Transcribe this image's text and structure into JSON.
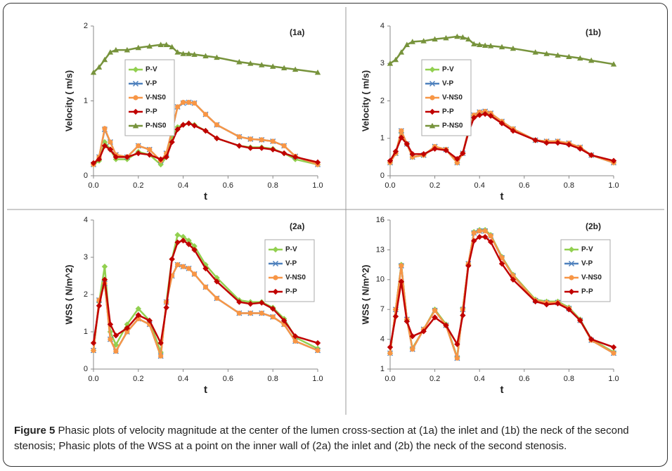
{
  "caption": {
    "label": "Figure 5",
    "text": "Phasic plots of velocity magnitude at the center of the lumen cross-section at (1a) the inlet and (1b) the neck of the second stenosis; Phasic plots of the WSS at a point on the inner wall of (2a) the inlet and (2b) the neck of the second stenosis."
  },
  "chart_data": [
    {
      "type": "line",
      "annotation": "(1a)",
      "y_label": "Velocity ( m/s)",
      "x_label": "t",
      "legend": "upper left",
      "xlim": [
        0,
        1
      ],
      "xticks": [
        {
          "value": 0,
          "label": "0.0"
        },
        0.2,
        0.4,
        0.6,
        0.8,
        {
          "value": 1,
          "label": "1.0"
        }
      ],
      "ylim": [
        0,
        2
      ],
      "yticks": [
        0,
        1,
        2
      ],
      "x": [
        0,
        0.025,
        0.05,
        0.075,
        0.1,
        0.15,
        0.2,
        0.25,
        0.3,
        0.325,
        0.35,
        0.375,
        0.4,
        0.425,
        0.45,
        0.5,
        0.55,
        0.65,
        0.7,
        0.75,
        0.8,
        0.85,
        0.9,
        1.0
      ],
      "series": [
        {
          "name": "P-V",
          "color": "#92d050",
          "marker": "diamond",
          "values": [
            0.15,
            0.2,
            0.45,
            0.35,
            0.22,
            0.22,
            0.32,
            0.28,
            0.15,
            0.25,
            0.5,
            0.65,
            0.68,
            0.7,
            0.68,
            0.6,
            0.5,
            0.4,
            0.38,
            0.38,
            0.36,
            0.3,
            0.22,
            0.15
          ]
        },
        {
          "name": "V-P",
          "color": "#4f81bd",
          "marker": "x",
          "values": [
            0.15,
            0.25,
            0.62,
            0.45,
            0.28,
            0.25,
            0.4,
            0.35,
            0.2,
            0.3,
            0.6,
            0.92,
            0.97,
            0.98,
            0.97,
            0.82,
            0.68,
            0.52,
            0.49,
            0.48,
            0.46,
            0.4,
            0.26,
            0.15
          ]
        },
        {
          "name": "V-NS0",
          "color": "#f79646",
          "marker": "circle",
          "values": [
            0.15,
            0.25,
            0.63,
            0.45,
            0.28,
            0.25,
            0.4,
            0.35,
            0.2,
            0.3,
            0.6,
            0.92,
            0.98,
            0.98,
            0.97,
            0.82,
            0.68,
            0.52,
            0.49,
            0.48,
            0.46,
            0.4,
            0.26,
            0.15
          ]
        },
        {
          "name": "P-P",
          "color": "#c00000",
          "marker": "diamond",
          "values": [
            0.17,
            0.22,
            0.4,
            0.35,
            0.25,
            0.25,
            0.3,
            0.28,
            0.22,
            0.25,
            0.45,
            0.62,
            0.68,
            0.7,
            0.67,
            0.6,
            0.5,
            0.4,
            0.37,
            0.37,
            0.35,
            0.3,
            0.25,
            0.18
          ]
        },
        {
          "name": "P-NS0",
          "color": "#77933c",
          "marker": "triangle",
          "values": [
            1.38,
            1.45,
            1.55,
            1.65,
            1.68,
            1.68,
            1.71,
            1.73,
            1.75,
            1.75,
            1.72,
            1.65,
            1.63,
            1.63,
            1.62,
            1.6,
            1.58,
            1.52,
            1.5,
            1.48,
            1.46,
            1.44,
            1.42,
            1.38
          ]
        }
      ]
    },
    {
      "type": "line",
      "annotation": "(1b)",
      "y_label": "Velocity ( m/s)",
      "x_label": "t",
      "legend": "upper left",
      "xlim": [
        0,
        1
      ],
      "xticks": [
        {
          "value": 0,
          "label": "0.0"
        },
        0.2,
        0.4,
        0.6,
        0.8,
        {
          "value": 1,
          "label": "1.0"
        }
      ],
      "ylim": [
        0,
        4
      ],
      "yticks": [
        0,
        1,
        2,
        3,
        4
      ],
      "x": [
        0,
        0.025,
        0.05,
        0.075,
        0.1,
        0.15,
        0.2,
        0.25,
        0.3,
        0.325,
        0.35,
        0.375,
        0.4,
        0.425,
        0.45,
        0.5,
        0.55,
        0.65,
        0.7,
        0.75,
        0.8,
        0.85,
        0.9,
        1.0
      ],
      "series": [
        {
          "name": "P-V",
          "color": "#92d050",
          "marker": "diamond",
          "values": [
            0.35,
            0.6,
            1.15,
            0.85,
            0.5,
            0.55,
            0.75,
            0.7,
            0.35,
            0.6,
            1.15,
            1.6,
            1.68,
            1.7,
            1.65,
            1.45,
            1.25,
            0.95,
            0.9,
            0.9,
            0.85,
            0.75,
            0.55,
            0.35
          ]
        },
        {
          "name": "V-P",
          "color": "#4f81bd",
          "marker": "x",
          "values": [
            0.35,
            0.6,
            1.2,
            0.85,
            0.5,
            0.55,
            0.78,
            0.7,
            0.35,
            0.6,
            1.2,
            1.62,
            1.7,
            1.72,
            1.67,
            1.45,
            1.25,
            0.95,
            0.92,
            0.92,
            0.87,
            0.76,
            0.55,
            0.35
          ]
        },
        {
          "name": "V-NS0",
          "color": "#f79646",
          "marker": "circle",
          "values": [
            0.35,
            0.6,
            1.2,
            0.85,
            0.5,
            0.55,
            0.78,
            0.7,
            0.35,
            0.6,
            1.2,
            1.62,
            1.7,
            1.72,
            1.67,
            1.45,
            1.25,
            0.95,
            0.92,
            0.92,
            0.87,
            0.76,
            0.55,
            0.35
          ]
        },
        {
          "name": "P-P",
          "color": "#c00000",
          "marker": "diamond",
          "values": [
            0.4,
            0.65,
            1.02,
            0.85,
            0.58,
            0.58,
            0.72,
            0.68,
            0.45,
            0.6,
            1.15,
            1.55,
            1.62,
            1.65,
            1.6,
            1.4,
            1.2,
            0.95,
            0.88,
            0.88,
            0.83,
            0.72,
            0.55,
            0.4
          ]
        },
        {
          "name": "P-NS0",
          "color": "#77933c",
          "marker": "triangle",
          "values": [
            3.0,
            3.1,
            3.3,
            3.5,
            3.58,
            3.6,
            3.65,
            3.68,
            3.72,
            3.7,
            3.65,
            3.52,
            3.5,
            3.48,
            3.47,
            3.44,
            3.4,
            3.3,
            3.26,
            3.22,
            3.18,
            3.14,
            3.08,
            2.98
          ]
        }
      ]
    },
    {
      "type": "line",
      "annotation": "(2a)",
      "y_label": "WSS ( N/m^2)",
      "x_label": "t",
      "legend": "upper right",
      "xlim": [
        0,
        1
      ],
      "xticks": [
        {
          "value": 0,
          "label": "0.0"
        },
        0.2,
        0.4,
        0.6,
        0.8,
        {
          "value": 1,
          "label": "1.0"
        }
      ],
      "ylim": [
        0,
        4
      ],
      "yticks": [
        0,
        1,
        2,
        3,
        4
      ],
      "x": [
        0,
        0.025,
        0.05,
        0.075,
        0.1,
        0.15,
        0.2,
        0.25,
        0.3,
        0.325,
        0.35,
        0.375,
        0.4,
        0.425,
        0.45,
        0.5,
        0.55,
        0.65,
        0.7,
        0.75,
        0.8,
        0.85,
        0.9,
        1.0
      ],
      "series": [
        {
          "name": "P-V",
          "color": "#92d050",
          "marker": "diamond",
          "values": [
            0.5,
            1.8,
            2.75,
            1.0,
            0.65,
            1.2,
            1.62,
            1.3,
            0.45,
            1.8,
            2.95,
            3.6,
            3.55,
            3.45,
            3.3,
            2.8,
            2.45,
            1.85,
            1.8,
            1.8,
            1.65,
            1.35,
            0.85,
            0.55
          ]
        },
        {
          "name": "V-P",
          "color": "#4f81bd",
          "marker": "x",
          "values": [
            0.5,
            1.85,
            2.3,
            0.8,
            0.48,
            1.0,
            1.35,
            1.2,
            0.35,
            1.8,
            2.5,
            2.8,
            2.75,
            2.7,
            2.55,
            2.2,
            1.9,
            1.5,
            1.5,
            1.5,
            1.4,
            1.2,
            0.75,
            0.5
          ]
        },
        {
          "name": "V-NS0",
          "color": "#f79646",
          "marker": "circle",
          "values": [
            0.5,
            1.85,
            2.3,
            0.8,
            0.48,
            1.0,
            1.35,
            1.2,
            0.35,
            1.8,
            2.5,
            2.8,
            2.75,
            2.7,
            2.55,
            2.2,
            1.9,
            1.5,
            1.5,
            1.5,
            1.4,
            1.2,
            0.75,
            0.5
          ]
        },
        {
          "name": "P-P",
          "color": "#c00000",
          "marker": "diamond",
          "values": [
            0.7,
            1.7,
            2.4,
            1.2,
            0.9,
            1.1,
            1.45,
            1.3,
            0.7,
            1.65,
            2.95,
            3.4,
            3.45,
            3.35,
            3.2,
            2.7,
            2.35,
            1.8,
            1.75,
            1.78,
            1.62,
            1.3,
            0.88,
            0.7
          ]
        }
      ]
    },
    {
      "type": "line",
      "annotation": "(2b)",
      "y_label": "WSS ( N/m^2)",
      "x_label": "t",
      "legend": "upper right",
      "xlim": [
        0,
        1
      ],
      "xticks": [
        {
          "value": 0,
          "label": "0.0"
        },
        0.2,
        0.4,
        0.6,
        0.8,
        {
          "value": 1,
          "label": "1.0"
        }
      ],
      "ylim": [
        1,
        16
      ],
      "yticks": [
        1,
        4,
        7,
        10,
        13,
        16
      ],
      "x": [
        0,
        0.025,
        0.05,
        0.075,
        0.1,
        0.15,
        0.2,
        0.25,
        0.3,
        0.325,
        0.35,
        0.375,
        0.4,
        0.425,
        0.45,
        0.5,
        0.55,
        0.65,
        0.7,
        0.75,
        0.8,
        0.85,
        0.9,
        1.0
      ],
      "series": [
        {
          "name": "P-V",
          "color": "#92d050",
          "marker": "diamond",
          "values": [
            2.6,
            7.0,
            11.5,
            6.0,
            3.1,
            5.0,
            7.0,
            5.5,
            2.2,
            7.1,
            11.5,
            14.8,
            15.0,
            15.0,
            14.5,
            12.3,
            10.5,
            8.0,
            7.8,
            7.8,
            7.2,
            6.0,
            4.0,
            2.7
          ]
        },
        {
          "name": "V-P",
          "color": "#4f81bd",
          "marker": "x",
          "values": [
            2.6,
            7.0,
            11.4,
            6.0,
            3.0,
            5.0,
            6.9,
            5.4,
            2.1,
            7.0,
            11.6,
            14.7,
            14.9,
            14.9,
            14.4,
            12.2,
            10.4,
            7.9,
            7.7,
            7.7,
            7.1,
            5.9,
            3.9,
            2.6
          ]
        },
        {
          "name": "V-NS0",
          "color": "#f79646",
          "marker": "circle",
          "values": [
            2.6,
            7.0,
            11.4,
            6.0,
            3.0,
            5.0,
            6.9,
            5.4,
            2.1,
            7.0,
            11.6,
            14.7,
            14.9,
            14.9,
            14.4,
            12.2,
            10.4,
            7.9,
            7.7,
            7.7,
            7.1,
            5.9,
            3.9,
            2.6
          ]
        },
        {
          "name": "P-P",
          "color": "#c00000",
          "marker": "diamond",
          "values": [
            3.2,
            6.3,
            9.8,
            5.8,
            4.3,
            4.8,
            6.2,
            5.4,
            3.5,
            6.4,
            11.4,
            13.9,
            14.3,
            14.3,
            13.8,
            11.6,
            10.0,
            7.8,
            7.5,
            7.6,
            7.0,
            5.9,
            4.0,
            3.2
          ]
        }
      ]
    }
  ]
}
